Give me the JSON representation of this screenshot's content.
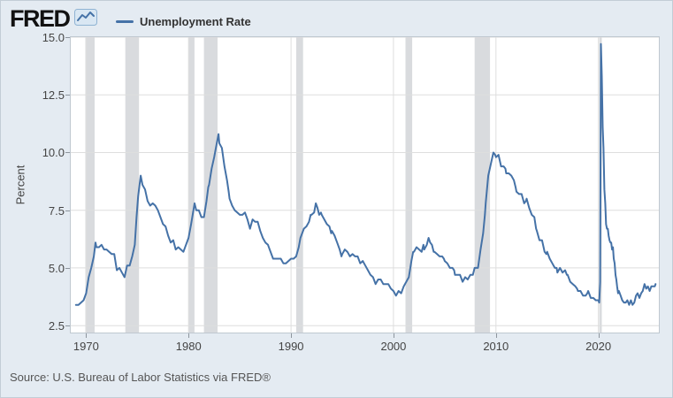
{
  "header": {
    "logo_text": "FRED"
  },
  "footer": {
    "source": "Source: U.S. Bureau of Labor Statistics via FRED®"
  },
  "colors": {
    "background": "#e4ebf2",
    "plot_background": "#ffffff",
    "grid": "#dedede",
    "recession_band": "#d9dbde",
    "line": "#4572a7",
    "axis_text": "#444444",
    "source_text": "#555555"
  },
  "chart_data": {
    "type": "line",
    "title": "Unemployment Rate",
    "xlabel": "",
    "ylabel": "Percent",
    "legend_position": "top-left",
    "grid": true,
    "x_range": [
      1968.5,
      2025.9
    ],
    "y_range": [
      2.2,
      15.0
    ],
    "y_ticks": [
      2.5,
      5.0,
      7.5,
      10.0,
      12.5,
      15.0
    ],
    "y_tick_labels": [
      "2.5",
      "5.0",
      "7.5",
      "10.0",
      "12.5",
      "15.0"
    ],
    "x_ticks": [
      1970,
      1980,
      1990,
      2000,
      2010,
      2020
    ],
    "x_tick_labels": [
      "1970",
      "1980",
      "1990",
      "2000",
      "2010",
      "2020"
    ],
    "recession_bands": [
      [
        1969.92,
        1970.83
      ],
      [
        1973.83,
        1975.17
      ],
      [
        1980.0,
        1980.58
      ],
      [
        1981.5,
        1982.83
      ],
      [
        1990.5,
        1991.17
      ],
      [
        2001.17,
        2001.83
      ],
      [
        2007.92,
        2009.42
      ],
      [
        2020.08,
        2020.33
      ]
    ],
    "series": [
      {
        "name": "Unemployment Rate",
        "units": "Percent",
        "points": [
          [
            1969.0,
            3.4
          ],
          [
            1969.25,
            3.4
          ],
          [
            1969.5,
            3.5
          ],
          [
            1969.75,
            3.6
          ],
          [
            1970.0,
            3.9
          ],
          [
            1970.25,
            4.6
          ],
          [
            1970.5,
            5.0
          ],
          [
            1970.75,
            5.5
          ],
          [
            1970.92,
            6.1
          ],
          [
            1971.0,
            5.9
          ],
          [
            1971.25,
            5.9
          ],
          [
            1971.5,
            6.0
          ],
          [
            1971.75,
            5.8
          ],
          [
            1972.0,
            5.8
          ],
          [
            1972.25,
            5.7
          ],
          [
            1972.5,
            5.6
          ],
          [
            1972.75,
            5.6
          ],
          [
            1973.0,
            4.9
          ],
          [
            1973.25,
            5.0
          ],
          [
            1973.5,
            4.8
          ],
          [
            1973.75,
            4.6
          ],
          [
            1974.0,
            5.1
          ],
          [
            1974.25,
            5.1
          ],
          [
            1974.5,
            5.5
          ],
          [
            1974.75,
            6.0
          ],
          [
            1974.92,
            7.2
          ],
          [
            1975.08,
            8.1
          ],
          [
            1975.33,
            9.0
          ],
          [
            1975.5,
            8.6
          ],
          [
            1975.75,
            8.4
          ],
          [
            1976.0,
            7.9
          ],
          [
            1976.25,
            7.7
          ],
          [
            1976.5,
            7.8
          ],
          [
            1976.75,
            7.7
          ],
          [
            1977.0,
            7.5
          ],
          [
            1977.25,
            7.2
          ],
          [
            1977.5,
            6.9
          ],
          [
            1977.75,
            6.8
          ],
          [
            1978.0,
            6.4
          ],
          [
            1978.25,
            6.1
          ],
          [
            1978.5,
            6.2
          ],
          [
            1978.75,
            5.8
          ],
          [
            1979.0,
            5.9
          ],
          [
            1979.25,
            5.8
          ],
          [
            1979.5,
            5.7
          ],
          [
            1979.75,
            6.0
          ],
          [
            1980.0,
            6.3
          ],
          [
            1980.25,
            6.9
          ],
          [
            1980.58,
            7.8
          ],
          [
            1980.75,
            7.5
          ],
          [
            1981.0,
            7.5
          ],
          [
            1981.25,
            7.2
          ],
          [
            1981.5,
            7.2
          ],
          [
            1981.75,
            7.9
          ],
          [
            1981.92,
            8.5
          ],
          [
            1982.0,
            8.6
          ],
          [
            1982.25,
            9.3
          ],
          [
            1982.5,
            9.8
          ],
          [
            1982.75,
            10.4
          ],
          [
            1982.92,
            10.8
          ],
          [
            1983.0,
            10.4
          ],
          [
            1983.25,
            10.2
          ],
          [
            1983.5,
            9.4
          ],
          [
            1983.75,
            8.8
          ],
          [
            1983.92,
            8.3
          ],
          [
            1984.0,
            8.0
          ],
          [
            1984.25,
            7.7
          ],
          [
            1984.5,
            7.5
          ],
          [
            1984.75,
            7.4
          ],
          [
            1985.0,
            7.3
          ],
          [
            1985.25,
            7.3
          ],
          [
            1985.5,
            7.4
          ],
          [
            1985.75,
            7.1
          ],
          [
            1986.0,
            6.7
          ],
          [
            1986.25,
            7.1
          ],
          [
            1986.5,
            7.0
          ],
          [
            1986.75,
            7.0
          ],
          [
            1987.0,
            6.6
          ],
          [
            1987.25,
            6.3
          ],
          [
            1987.5,
            6.1
          ],
          [
            1987.75,
            6.0
          ],
          [
            1988.0,
            5.7
          ],
          [
            1988.25,
            5.4
          ],
          [
            1988.5,
            5.4
          ],
          [
            1988.75,
            5.4
          ],
          [
            1989.0,
            5.4
          ],
          [
            1989.25,
            5.2
          ],
          [
            1989.5,
            5.2
          ],
          [
            1989.75,
            5.3
          ],
          [
            1990.0,
            5.4
          ],
          [
            1990.25,
            5.4
          ],
          [
            1990.5,
            5.5
          ],
          [
            1990.75,
            5.9
          ],
          [
            1990.92,
            6.3
          ],
          [
            1991.0,
            6.4
          ],
          [
            1991.25,
            6.7
          ],
          [
            1991.5,
            6.8
          ],
          [
            1991.75,
            7.0
          ],
          [
            1991.92,
            7.3
          ],
          [
            1992.0,
            7.3
          ],
          [
            1992.25,
            7.4
          ],
          [
            1992.42,
            7.8
          ],
          [
            1992.58,
            7.6
          ],
          [
            1992.75,
            7.3
          ],
          [
            1992.92,
            7.4
          ],
          [
            1993.0,
            7.3
          ],
          [
            1993.25,
            7.1
          ],
          [
            1993.5,
            6.9
          ],
          [
            1993.75,
            6.8
          ],
          [
            1993.92,
            6.5
          ],
          [
            1994.0,
            6.6
          ],
          [
            1994.25,
            6.4
          ],
          [
            1994.5,
            6.1
          ],
          [
            1994.75,
            5.8
          ],
          [
            1994.92,
            5.5
          ],
          [
            1995.0,
            5.6
          ],
          [
            1995.25,
            5.8
          ],
          [
            1995.5,
            5.7
          ],
          [
            1995.75,
            5.5
          ],
          [
            1996.0,
            5.6
          ],
          [
            1996.25,
            5.5
          ],
          [
            1996.5,
            5.5
          ],
          [
            1996.75,
            5.2
          ],
          [
            1997.0,
            5.3
          ],
          [
            1997.25,
            5.1
          ],
          [
            1997.5,
            4.9
          ],
          [
            1997.75,
            4.7
          ],
          [
            1998.0,
            4.6
          ],
          [
            1998.25,
            4.3
          ],
          [
            1998.5,
            4.5
          ],
          [
            1998.75,
            4.5
          ],
          [
            1999.0,
            4.3
          ],
          [
            1999.25,
            4.3
          ],
          [
            1999.5,
            4.3
          ],
          [
            1999.75,
            4.1
          ],
          [
            2000.0,
            4.0
          ],
          [
            2000.25,
            3.8
          ],
          [
            2000.5,
            4.0
          ],
          [
            2000.75,
            3.9
          ],
          [
            2001.0,
            4.2
          ],
          [
            2001.25,
            4.4
          ],
          [
            2001.5,
            4.6
          ],
          [
            2001.75,
            5.3
          ],
          [
            2001.92,
            5.7
          ],
          [
            2002.0,
            5.7
          ],
          [
            2002.25,
            5.9
          ],
          [
            2002.5,
            5.8
          ],
          [
            2002.75,
            5.7
          ],
          [
            2002.92,
            6.0
          ],
          [
            2003.0,
            5.8
          ],
          [
            2003.25,
            6.0
          ],
          [
            2003.42,
            6.3
          ],
          [
            2003.58,
            6.1
          ],
          [
            2003.75,
            6.0
          ],
          [
            2003.92,
            5.7
          ],
          [
            2004.0,
            5.7
          ],
          [
            2004.25,
            5.6
          ],
          [
            2004.5,
            5.5
          ],
          [
            2004.75,
            5.5
          ],
          [
            2004.92,
            5.4
          ],
          [
            2005.0,
            5.3
          ],
          [
            2005.25,
            5.2
          ],
          [
            2005.5,
            5.0
          ],
          [
            2005.75,
            5.0
          ],
          [
            2005.92,
            4.9
          ],
          [
            2006.0,
            4.7
          ],
          [
            2006.25,
            4.7
          ],
          [
            2006.5,
            4.7
          ],
          [
            2006.75,
            4.4
          ],
          [
            2007.0,
            4.6
          ],
          [
            2007.25,
            4.5
          ],
          [
            2007.5,
            4.7
          ],
          [
            2007.75,
            4.7
          ],
          [
            2007.92,
            5.0
          ],
          [
            2008.0,
            5.0
          ],
          [
            2008.25,
            5.0
          ],
          [
            2008.5,
            5.8
          ],
          [
            2008.75,
            6.5
          ],
          [
            2008.92,
            7.3
          ],
          [
            2009.0,
            7.8
          ],
          [
            2009.25,
            9.0
          ],
          [
            2009.5,
            9.5
          ],
          [
            2009.75,
            10.0
          ],
          [
            2009.92,
            9.9
          ],
          [
            2010.0,
            9.8
          ],
          [
            2010.25,
            9.9
          ],
          [
            2010.5,
            9.4
          ],
          [
            2010.75,
            9.4
          ],
          [
            2010.92,
            9.3
          ],
          [
            2011.0,
            9.1
          ],
          [
            2011.25,
            9.1
          ],
          [
            2011.5,
            9.0
          ],
          [
            2011.75,
            8.8
          ],
          [
            2011.92,
            8.5
          ],
          [
            2012.0,
            8.3
          ],
          [
            2012.25,
            8.2
          ],
          [
            2012.5,
            8.2
          ],
          [
            2012.75,
            7.8
          ],
          [
            2012.92,
            7.9
          ],
          [
            2013.0,
            8.0
          ],
          [
            2013.25,
            7.6
          ],
          [
            2013.5,
            7.3
          ],
          [
            2013.75,
            7.2
          ],
          [
            2013.92,
            6.7
          ],
          [
            2014.0,
            6.6
          ],
          [
            2014.25,
            6.2
          ],
          [
            2014.5,
            6.2
          ],
          [
            2014.75,
            5.7
          ],
          [
            2014.92,
            5.6
          ],
          [
            2015.0,
            5.7
          ],
          [
            2015.25,
            5.4
          ],
          [
            2015.5,
            5.2
          ],
          [
            2015.75,
            5.0
          ],
          [
            2015.92,
            5.0
          ],
          [
            2016.0,
            4.8
          ],
          [
            2016.25,
            5.0
          ],
          [
            2016.5,
            4.8
          ],
          [
            2016.75,
            4.9
          ],
          [
            2016.92,
            4.7
          ],
          [
            2017.0,
            4.7
          ],
          [
            2017.25,
            4.4
          ],
          [
            2017.5,
            4.3
          ],
          [
            2017.75,
            4.2
          ],
          [
            2017.92,
            4.1
          ],
          [
            2018.0,
            4.0
          ],
          [
            2018.25,
            4.0
          ],
          [
            2018.5,
            3.8
          ],
          [
            2018.75,
            3.8
          ],
          [
            2018.92,
            3.9
          ],
          [
            2019.0,
            4.0
          ],
          [
            2019.25,
            3.7
          ],
          [
            2019.5,
            3.7
          ],
          [
            2019.75,
            3.6
          ],
          [
            2019.92,
            3.6
          ],
          [
            2020.0,
            3.6
          ],
          [
            2020.08,
            3.5
          ],
          [
            2020.17,
            4.4
          ],
          [
            2020.25,
            14.7
          ],
          [
            2020.33,
            13.3
          ],
          [
            2020.42,
            11.1
          ],
          [
            2020.5,
            10.2
          ],
          [
            2020.58,
            8.4
          ],
          [
            2020.67,
            7.8
          ],
          [
            2020.75,
            6.9
          ],
          [
            2020.83,
            6.7
          ],
          [
            2020.92,
            6.7
          ],
          [
            2021.0,
            6.4
          ],
          [
            2021.08,
            6.2
          ],
          [
            2021.17,
            6.1
          ],
          [
            2021.25,
            6.1
          ],
          [
            2021.33,
            5.8
          ],
          [
            2021.42,
            5.9
          ],
          [
            2021.5,
            5.4
          ],
          [
            2021.58,
            5.2
          ],
          [
            2021.67,
            4.7
          ],
          [
            2021.75,
            4.5
          ],
          [
            2021.83,
            4.2
          ],
          [
            2021.92,
            3.9
          ],
          [
            2022.0,
            4.0
          ],
          [
            2022.17,
            3.8
          ],
          [
            2022.33,
            3.6
          ],
          [
            2022.5,
            3.5
          ],
          [
            2022.67,
            3.5
          ],
          [
            2022.83,
            3.6
          ],
          [
            2023.0,
            3.4
          ],
          [
            2023.17,
            3.6
          ],
          [
            2023.33,
            3.4
          ],
          [
            2023.5,
            3.5
          ],
          [
            2023.67,
            3.8
          ],
          [
            2023.83,
            3.9
          ],
          [
            2024.0,
            3.7
          ],
          [
            2024.17,
            3.9
          ],
          [
            2024.33,
            4.0
          ],
          [
            2024.5,
            4.3
          ],
          [
            2024.67,
            4.1
          ],
          [
            2024.83,
            4.2
          ],
          [
            2025.0,
            4.0
          ],
          [
            2025.17,
            4.2
          ],
          [
            2025.33,
            4.2
          ],
          [
            2025.5,
            4.2
          ],
          [
            2025.58,
            4.3
          ]
        ]
      }
    ]
  }
}
